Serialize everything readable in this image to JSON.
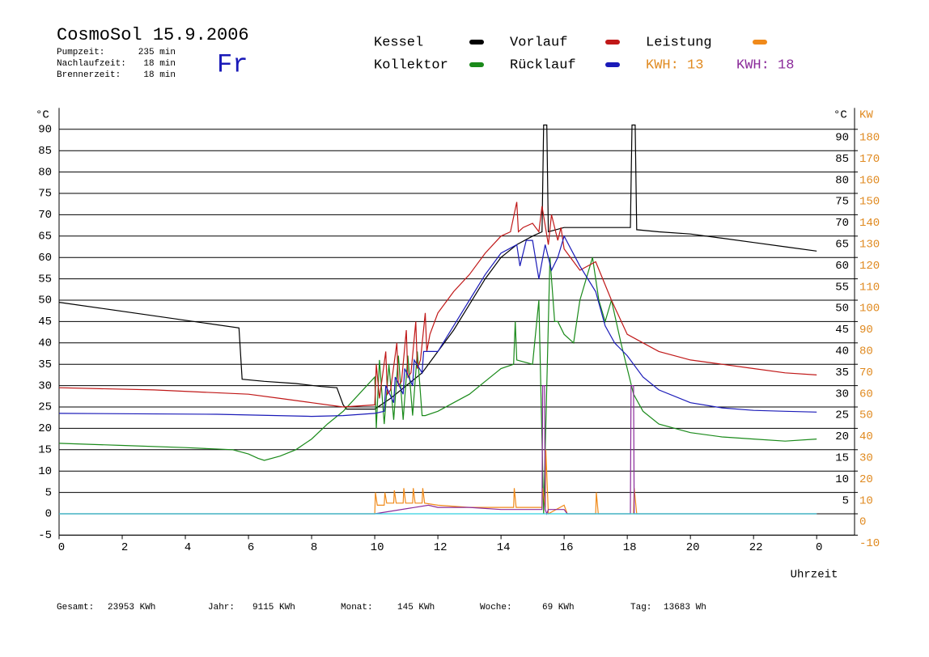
{
  "header": {
    "title": "CosmoSol 15.9.2006",
    "day": "Fr",
    "stats": [
      {
        "label": "Pumpzeit:",
        "value": "235 min"
      },
      {
        "label": "Nachlaufzeit:",
        "value": "18 min"
      },
      {
        "label": "Brennerzeit:",
        "value": "18 min"
      }
    ]
  },
  "footer": [
    {
      "label": "Gesamt:",
      "value": "23953 KWh"
    },
    {
      "label": "Jahr:",
      "value": "9115 KWh"
    },
    {
      "label": "Monat:",
      "value": "145 KWh"
    },
    {
      "label": "Woche:",
      "value": "69 KWh"
    },
    {
      "label": "Tag:",
      "value": "13683 Wh"
    }
  ],
  "chart_data": {
    "type": "line",
    "y_unit": "°C",
    "y2_unit_left": "°C",
    "y2_unit": "KW",
    "x_label": "Uhrzeit",
    "xlim": [
      0,
      25.2
    ],
    "xticks": [
      0,
      2,
      4,
      6,
      8,
      10,
      12,
      14,
      16,
      18,
      20,
      22,
      {
        "value": 24,
        "label": "0"
      }
    ],
    "ylim": [
      -5,
      95
    ],
    "yticks": [
      -5,
      0,
      5,
      10,
      15,
      20,
      25,
      30,
      35,
      40,
      45,
      50,
      55,
      60,
      65,
      70,
      75,
      80,
      85,
      90
    ],
    "y2lim": [
      -10,
      190
    ],
    "y2ticks": [
      -10,
      0,
      10,
      20,
      30,
      40,
      50,
      60,
      70,
      80,
      90,
      100,
      110,
      120,
      130,
      140,
      150,
      160,
      170,
      180
    ],
    "grid": true,
    "kwh_labels": [
      {
        "text": "KWH: 13",
        "color": "#e08a20"
      },
      {
        "text": "KWH: 18",
        "color": "#8a2a9a"
      }
    ],
    "series": [
      {
        "name": "Kessel",
        "color": "#000000",
        "x": [
          0,
          5.7,
          5.8,
          6.5,
          7.5,
          8.3,
          8.8,
          9.0,
          9.1,
          10,
          10.5,
          11,
          11.5,
          12,
          12.5,
          13,
          13.5,
          14,
          14.5,
          15,
          15.3,
          15.35,
          15.45,
          15.5,
          16,
          17,
          18.1,
          18.15,
          18.25,
          18.3,
          19,
          20,
          21,
          22,
          23,
          24
        ],
        "values": [
          49.5,
          43.5,
          31.5,
          31,
          30.5,
          29.8,
          29.5,
          25.5,
          24.5,
          24.5,
          27,
          30,
          33,
          38,
          43,
          49,
          55,
          60,
          63,
          65,
          66,
          91,
          91,
          66,
          67,
          67,
          67,
          91,
          91,
          66.5,
          66,
          65.5,
          64.5,
          63.5,
          62.5,
          61.5
        ]
      },
      {
        "name": "Kollektor",
        "color": "#1a8a1a",
        "x": [
          0,
          2,
          4,
          5.5,
          6,
          6.3,
          6.5,
          7,
          7.5,
          8,
          8.5,
          9,
          9.5,
          10,
          10.05,
          10.15,
          10.3,
          10.45,
          10.6,
          10.75,
          10.9,
          11.05,
          11.2,
          11.35,
          11.5,
          11.6,
          12,
          12.5,
          13,
          13.5,
          14,
          14.4,
          14.45,
          14.5,
          15,
          15.2,
          15.35,
          15.45,
          15.55,
          15.7,
          15.8,
          16,
          16.3,
          16.5,
          16.9,
          17.1,
          17.3,
          17.5,
          17.8,
          18,
          18.2,
          18.5,
          19,
          20,
          21,
          22,
          23,
          24
        ],
        "values": [
          16.5,
          16,
          15.5,
          15,
          14,
          13,
          12.5,
          13.5,
          15,
          17.5,
          21,
          24,
          28,
          32,
          20,
          36,
          21,
          35,
          22,
          37,
          22,
          37,
          23,
          38,
          23,
          23,
          24,
          26,
          28,
          31,
          34,
          35,
          45,
          36,
          35,
          50,
          0,
          30,
          60,
          45,
          45,
          42,
          40,
          50,
          60,
          50,
          45,
          50,
          40,
          34,
          28,
          24,
          21,
          19,
          18,
          17.5,
          17,
          17.5
        ]
      },
      {
        "name": "Vorlauf",
        "color": "#c01818",
        "x": [
          0,
          3,
          6,
          7,
          8,
          9,
          10,
          10.05,
          10.15,
          10.35,
          10.4,
          10.5,
          10.7,
          10.75,
          10.85,
          11.0,
          11.05,
          11.15,
          11.3,
          11.35,
          11.45,
          11.6,
          11.65,
          11.75,
          12,
          12.5,
          13,
          13.5,
          14,
          14.3,
          14.5,
          14.55,
          14.7,
          15,
          15.2,
          15.3,
          15.5,
          15.6,
          15.8,
          15.9,
          16,
          16.5,
          17,
          17.5,
          18,
          18.5,
          19,
          20,
          21,
          22,
          23,
          24
        ],
        "values": [
          29.5,
          29,
          28,
          27,
          26,
          25,
          25.5,
          35,
          27,
          38,
          28,
          29,
          40,
          30,
          31,
          43,
          32,
          33,
          45,
          34,
          36,
          47,
          38,
          42,
          47,
          52,
          56,
          61,
          65,
          66,
          73,
          66,
          67,
          68,
          66,
          72,
          63,
          70,
          64,
          67,
          62,
          57,
          59,
          50,
          42,
          40,
          38,
          36,
          35,
          34,
          33,
          32.5
        ]
      },
      {
        "name": "Rücklauf",
        "color": "#1a1ab8",
        "x": [
          0,
          5,
          8,
          9,
          10,
          10.3,
          10.35,
          10.6,
          10.65,
          10.9,
          10.95,
          11.2,
          11.25,
          11.5,
          11.55,
          12,
          12.5,
          13,
          13.5,
          14,
          14.5,
          14.6,
          14.8,
          15,
          15.2,
          15.4,
          15.6,
          15.8,
          16,
          16.5,
          17,
          17.3,
          17.6,
          18,
          18.2,
          18.5,
          19,
          20,
          21,
          22,
          23,
          24
        ],
        "values": [
          23.5,
          23.3,
          22.8,
          23,
          23.5,
          24,
          30,
          26,
          32,
          28,
          34,
          30,
          36,
          33,
          38,
          38,
          44,
          50,
          56,
          61,
          63,
          58,
          64,
          64,
          55,
          63,
          57,
          60,
          65,
          58,
          52,
          44,
          40,
          37,
          35,
          32,
          29,
          26,
          24.8,
          24.2,
          24,
          23.8
        ]
      },
      {
        "name": "Leistung",
        "color": "#f08a1a",
        "axis": "y2",
        "x": [
          0,
          10,
          10.02,
          10.08,
          10.3,
          10.32,
          10.38,
          10.6,
          10.62,
          10.68,
          10.9,
          10.92,
          10.98,
          11.2,
          11.22,
          11.28,
          11.5,
          11.52,
          11.58,
          12,
          13,
          14,
          14.4,
          14.42,
          14.48,
          15.3,
          15.32,
          15.4,
          15.42,
          15.5,
          16,
          16.1,
          17,
          17.02,
          17.08,
          18.2,
          18.22,
          18.3,
          18.32,
          24
        ],
        "values": [
          0,
          0,
          10,
          4,
          4,
          10,
          5,
          5,
          11,
          5,
          5,
          12,
          5,
          5,
          12,
          5,
          5,
          12,
          5,
          4,
          3,
          3,
          3,
          12,
          3,
          3,
          12,
          3,
          30,
          0,
          4,
          0,
          0,
          10,
          0,
          0,
          12,
          0,
          0,
          0
        ]
      },
      {
        "color": "#8a2a9a",
        "axis": "y2",
        "x": [
          0,
          10,
          11.7,
          12,
          13,
          14,
          14.5,
          15.3,
          15.32,
          15.38,
          15.4,
          15.45,
          15.5,
          16,
          16.1,
          18.1,
          18.12,
          18.2,
          18.22,
          18.3,
          24
        ],
        "values": [
          0,
          0,
          4,
          3,
          3,
          2,
          2,
          2,
          60,
          60,
          2,
          0,
          2,
          2,
          0,
          0,
          60,
          60,
          0,
          0,
          0
        ]
      },
      {
        "color": "#30d0e0",
        "x": [
          0,
          24
        ],
        "values": [
          0,
          0
        ]
      }
    ]
  }
}
